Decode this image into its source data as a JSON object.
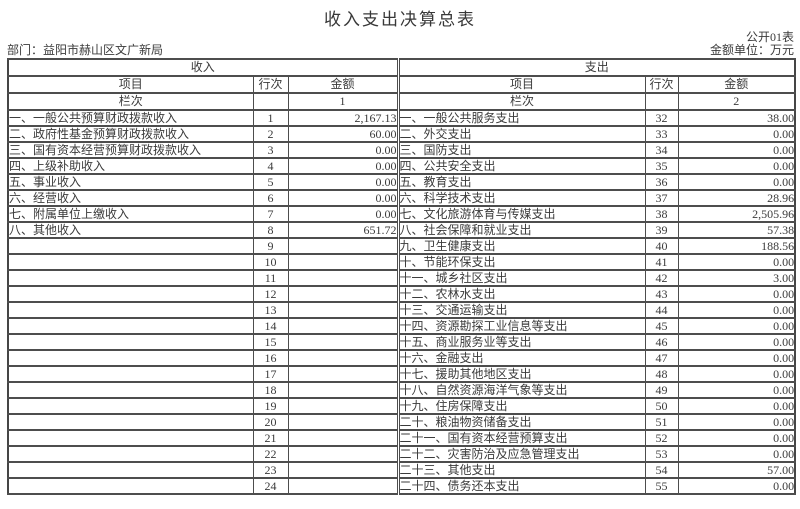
{
  "title": "收入支出决算总表",
  "form_code": "公开01表",
  "department_label": "部门：",
  "department_value": "益阳市赫山区文广新局",
  "unit_label": "金额单位：万元",
  "table": {
    "income_header": "收入",
    "expense_header": "支出",
    "col_item": "项目",
    "col_line": "行次",
    "col_amount": "金额",
    "index_row_label": "栏次",
    "income_col_index": "1",
    "expense_col_index": "2",
    "income_rows": [
      {
        "item": "一、一般公共预算财政拨款收入",
        "line": "1",
        "amount": "2,167.13"
      },
      {
        "item": "二、政府性基金预算财政拨款收入",
        "line": "2",
        "amount": "60.00"
      },
      {
        "item": "三、国有资本经营预算财政拨款收入",
        "line": "3",
        "amount": "0.00"
      },
      {
        "item": "四、上级补助收入",
        "line": "4",
        "amount": "0.00"
      },
      {
        "item": "五、事业收入",
        "line": "5",
        "amount": "0.00"
      },
      {
        "item": "六、经营收入",
        "line": "6",
        "amount": "0.00"
      },
      {
        "item": "七、附属单位上缴收入",
        "line": "7",
        "amount": "0.00"
      },
      {
        "item": "八、其他收入",
        "line": "8",
        "amount": "651.72"
      },
      {
        "item": "",
        "line": "9",
        "amount": ""
      },
      {
        "item": "",
        "line": "10",
        "amount": ""
      },
      {
        "item": "",
        "line": "11",
        "amount": ""
      },
      {
        "item": "",
        "line": "12",
        "amount": ""
      },
      {
        "item": "",
        "line": "13",
        "amount": ""
      },
      {
        "item": "",
        "line": "14",
        "amount": ""
      },
      {
        "item": "",
        "line": "15",
        "amount": ""
      },
      {
        "item": "",
        "line": "16",
        "amount": ""
      },
      {
        "item": "",
        "line": "17",
        "amount": ""
      },
      {
        "item": "",
        "line": "18",
        "amount": ""
      },
      {
        "item": "",
        "line": "19",
        "amount": ""
      },
      {
        "item": "",
        "line": "20",
        "amount": ""
      },
      {
        "item": "",
        "line": "21",
        "amount": ""
      },
      {
        "item": "",
        "line": "22",
        "amount": ""
      },
      {
        "item": "",
        "line": "23",
        "amount": ""
      },
      {
        "item": "",
        "line": "24",
        "amount": ""
      }
    ],
    "expense_rows": [
      {
        "item": "一、一般公共服务支出",
        "line": "32",
        "amount": "38.00"
      },
      {
        "item": "二、外交支出",
        "line": "33",
        "amount": "0.00"
      },
      {
        "item": "三、国防支出",
        "line": "34",
        "amount": "0.00"
      },
      {
        "item": "四、公共安全支出",
        "line": "35",
        "amount": "0.00"
      },
      {
        "item": "五、教育支出",
        "line": "36",
        "amount": "0.00"
      },
      {
        "item": "六、科学技术支出",
        "line": "37",
        "amount": "28.96"
      },
      {
        "item": "七、文化旅游体育与传媒支出",
        "line": "38",
        "amount": "2,505.96"
      },
      {
        "item": "八、社会保障和就业支出",
        "line": "39",
        "amount": "57.38"
      },
      {
        "item": "九、卫生健康支出",
        "line": "40",
        "amount": "188.56"
      },
      {
        "item": "十、节能环保支出",
        "line": "41",
        "amount": "0.00"
      },
      {
        "item": "十一、城乡社区支出",
        "line": "42",
        "amount": "3.00"
      },
      {
        "item": "十二、农林水支出",
        "line": "43",
        "amount": "0.00"
      },
      {
        "item": "十三、交通运输支出",
        "line": "44",
        "amount": "0.00"
      },
      {
        "item": "十四、资源勘探工业信息等支出",
        "line": "45",
        "amount": "0.00"
      },
      {
        "item": "十五、商业服务业等支出",
        "line": "46",
        "amount": "0.00"
      },
      {
        "item": "十六、金融支出",
        "line": "47",
        "amount": "0.00"
      },
      {
        "item": "十七、援助其他地区支出",
        "line": "48",
        "amount": "0.00"
      },
      {
        "item": "十八、自然资源海洋气象等支出",
        "line": "49",
        "amount": "0.00"
      },
      {
        "item": "十九、住房保障支出",
        "line": "50",
        "amount": "0.00"
      },
      {
        "item": "二十、粮油物资储备支出",
        "line": "51",
        "amount": "0.00"
      },
      {
        "item": "二十一、国有资本经营预算支出",
        "line": "52",
        "amount": "0.00"
      },
      {
        "item": "二十二、灾害防治及应急管理支出",
        "line": "53",
        "amount": "0.00"
      },
      {
        "item": "二十三、其他支出",
        "line": "54",
        "amount": "57.00"
      },
      {
        "item": "二十四、债务还本支出",
        "line": "55",
        "amount": "0.00"
      }
    ]
  }
}
